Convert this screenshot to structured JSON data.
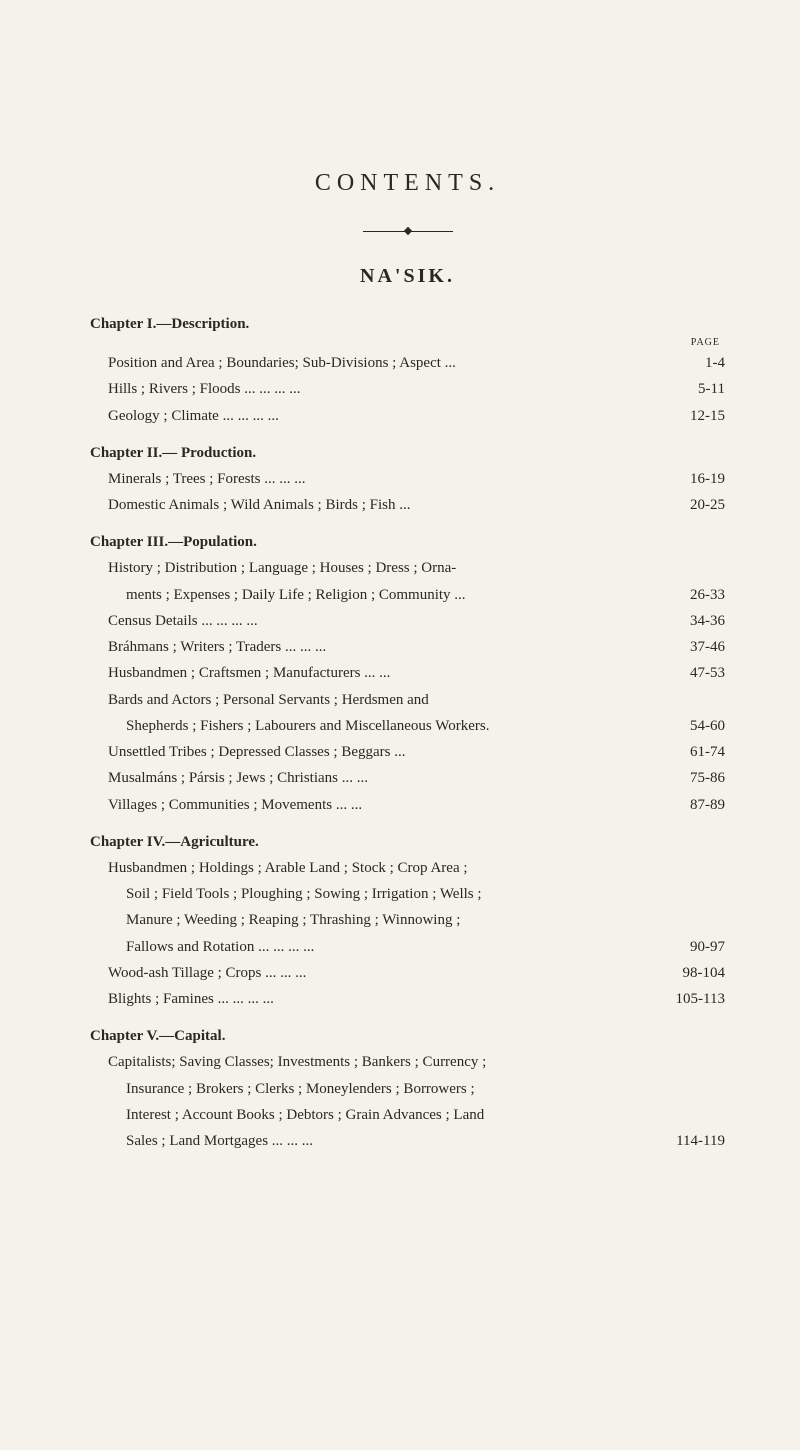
{
  "title": "CONTENTS.",
  "subtitle": "NA'SIK.",
  "pageLabel": "PAGE",
  "chapters": [
    {
      "heading": "Chapter I.—Description.",
      "entries": [
        {
          "text": "Position and Area ; Boundaries; Sub-Divisions ; Aspect   ...",
          "page": "1-4"
        },
        {
          "text": "Hills ; Rivers ; Floods   ...            ...            ...            ...",
          "page": "5-11"
        },
        {
          "text": "Geology ; Climate          ...            ...            ...            ...",
          "page": "12-15"
        }
      ]
    },
    {
      "heading": "Chapter II.— Production.",
      "entries": [
        {
          "text": "Minerals ; Trees ; Forests            ...            ...            ...",
          "page": "16-19"
        },
        {
          "text": "Domestic Animals ; Wild Animals ; Birds ; Fish            ...",
          "page": "20-25"
        }
      ]
    },
    {
      "heading": "Chapter III.—Population.",
      "entries": [
        {
          "text": "History ; Distribution ; Language ; Houses ; Dress ; Orna-",
          "page": ""
        },
        {
          "text": "ments ; Expenses ; Daily Life ; Religion ; Community  ...",
          "page": "26-33",
          "cont": true
        },
        {
          "text": "Census Details             ...            ...            ...            ...",
          "page": "34-36"
        },
        {
          "text": "Bráhmans ; Writers ; Traders         ...            ...            ...",
          "page": "37-46"
        },
        {
          "text": "Husbandmen ; Craftsmen ; Manufacturers       ...            ...",
          "page": "47-53"
        },
        {
          "text": "Bards and Actors ; Personal Servants ; Herdsmen and",
          "page": ""
        },
        {
          "text": "Shepherds ; Fishers ; Labourers and Miscellaneous Workers.",
          "page": "54-60",
          "cont": true
        },
        {
          "text": "Unsettled Tribes ; Depressed Classes ; Beggars            ...",
          "page": "61-74"
        },
        {
          "text": "Musalmáns ; Pársis ; Jews ; Christians            ...            ...",
          "page": "75-86"
        },
        {
          "text": "Villages ; Communities ; Movements            ...            ...",
          "page": "87-89"
        }
      ]
    },
    {
      "heading": "Chapter IV.—Agriculture.",
      "entries": [
        {
          "text": "Husbandmen ; Holdings ; Arable Land ; Stock ; Crop Area ;",
          "page": ""
        },
        {
          "text": "Soil ; Field Tools ; Ploughing ; Sowing ; Irrigation ; Wells ;",
          "page": "",
          "cont": true
        },
        {
          "text": "Manure ; Weeding ; Reaping ; Thrashing ; Winnowing ;",
          "page": "",
          "cont": true
        },
        {
          "text": "Fallows and Rotation ...            ...            ...            ...",
          "page": "90-97",
          "cont": true
        },
        {
          "text": "Wood-ash Tillage ; Crops            ...            ...            ...",
          "page": "98-104"
        },
        {
          "text": "Blights ; Famines           ...            ...            ...            ...",
          "page": "105-113"
        }
      ]
    },
    {
      "heading": "Chapter V.—Capital.",
      "entries": [
        {
          "text": "Capitalists; Saving Classes; Investments ; Bankers ; Currency ;",
          "page": ""
        },
        {
          "text": "Insurance ; Brokers ; Clerks ; Moneylenders ; Borrowers ;",
          "page": "",
          "cont": true
        },
        {
          "text": "Interest ; Account Books ; Debtors ; Grain Advances ; Land",
          "page": "",
          "cont": true
        },
        {
          "text": "Sales ; Land Mortgages            ...            ...            ...",
          "page": "114-119",
          "cont": true
        }
      ]
    }
  ]
}
